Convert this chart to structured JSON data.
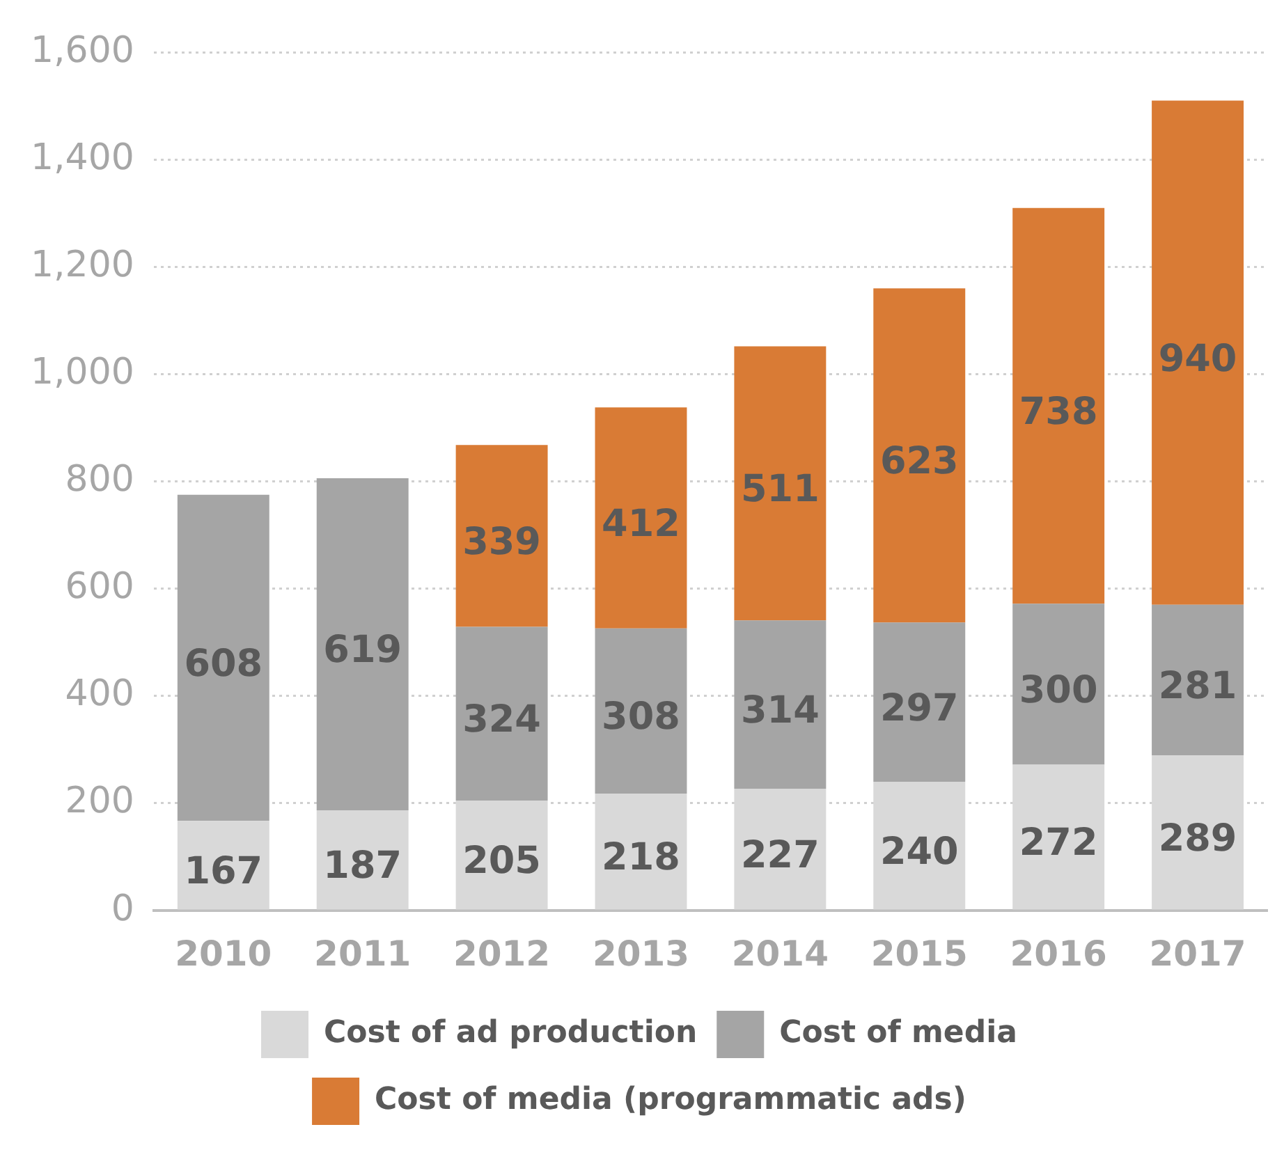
{
  "chart_data": {
    "type": "bar",
    "stacked": true,
    "categories": [
      "2010",
      "2011",
      "2012",
      "2013",
      "2014",
      "2015",
      "2016",
      "2017"
    ],
    "series": [
      {
        "name": "Cost of ad production",
        "color": "#d9d9d9",
        "values": [
          167,
          187,
          205,
          218,
          227,
          240,
          272,
          289
        ]
      },
      {
        "name": "Cost of media",
        "color": "#a5a5a5",
        "values": [
          608,
          619,
          324,
          308,
          314,
          297,
          300,
          281
        ]
      },
      {
        "name": "Cost of media (programmatic ads)",
        "color": "#d97b35",
        "values": [
          null,
          null,
          339,
          412,
          511,
          623,
          738,
          940
        ]
      }
    ],
    "ylim": [
      0,
      1600
    ],
    "yticks": [
      0,
      200,
      400,
      600,
      800,
      {
        "value": 1000,
        "label": "1,000"
      },
      {
        "value": 1200,
        "label": "1,200"
      },
      {
        "value": 1400,
        "label": "1,400"
      },
      {
        "value": 1600,
        "label": "1,600"
      }
    ],
    "grid": "y",
    "legend": "bottom",
    "data_labels": true
  }
}
